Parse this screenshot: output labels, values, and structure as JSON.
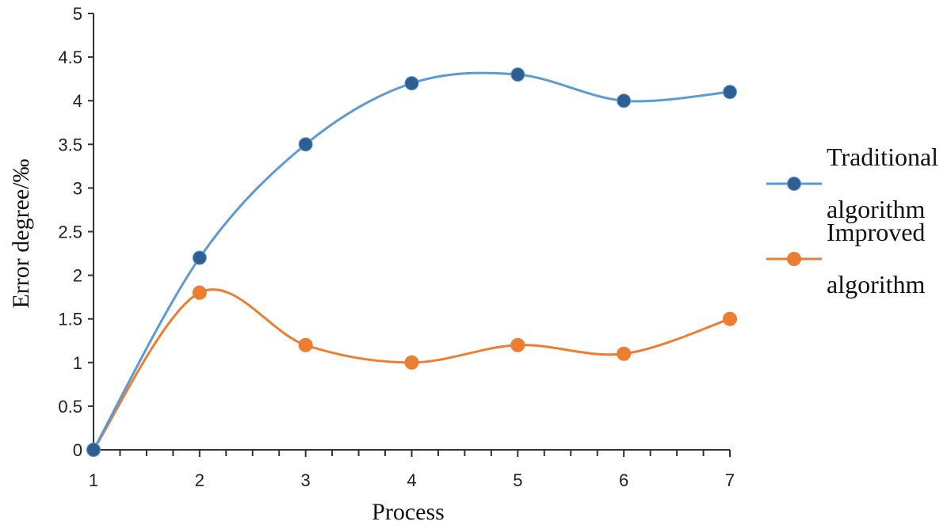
{
  "chart_data": {
    "type": "line",
    "title": "",
    "xlabel": "Process",
    "ylabel": "Error degree/‰",
    "x": [
      1,
      2,
      3,
      4,
      5,
      6,
      7
    ],
    "xlim": [
      1,
      7
    ],
    "ylim": [
      0,
      5
    ],
    "yticks": [
      0,
      0.5,
      1,
      1.5,
      2,
      2.5,
      3,
      3.5,
      4,
      4.5,
      5
    ],
    "grid": false,
    "smooth": true,
    "legend_position": "right",
    "series": [
      {
        "name": "Traditional algorithm",
        "legend_lines": [
          "Traditional",
          "algorithm"
        ],
        "values": [
          0,
          2.2,
          3.5,
          4.2,
          4.3,
          4.0,
          4.1
        ],
        "line_color": "#5b9bd5",
        "marker_color": "#2e5f93"
      },
      {
        "name": "Improved algorithm",
        "legend_lines": [
          "Improved",
          "algorithm"
        ],
        "values": [
          0,
          1.8,
          1.2,
          1.0,
          1.2,
          1.1,
          1.5
        ],
        "line_color": "#ed7d31",
        "marker_color": "#ed7d31"
      }
    ]
  }
}
